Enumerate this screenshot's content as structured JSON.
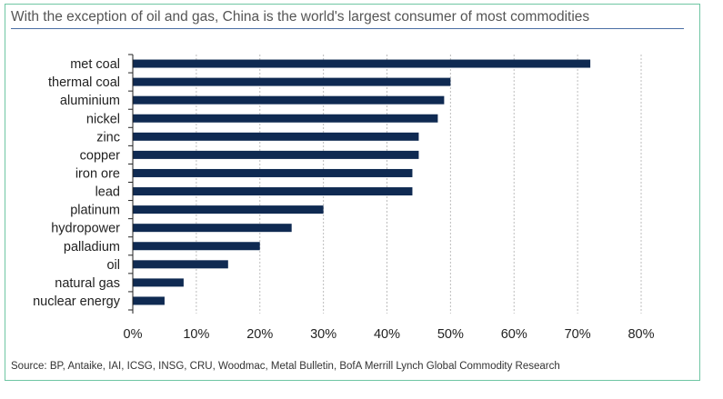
{
  "title": "With the exception of oil and gas, China is the world's largest consumer of most commodities",
  "source": "Source: BP, Antaike, IAI, ICSG, INSG, CRU, Woodmac, Metal Bulletin, BofA Merrill Lynch Global Commodity Research",
  "colors": {
    "bar": "#0f2a52",
    "frame": "#6fc6a3",
    "rule": "#4a6fa5",
    "grid": "#bdbdbd"
  },
  "chart_data": {
    "type": "bar",
    "orientation": "horizontal",
    "title": "With the exception of oil and gas, China is the world's largest consumer of most commodities",
    "categories": [
      "met coal",
      "thermal coal",
      "aluminium",
      "nickel",
      "zinc",
      "copper",
      "iron ore",
      "lead",
      "platinum",
      "hydropower",
      "palladium",
      "oil",
      "natural gas",
      "nuclear energy"
    ],
    "values": [
      72,
      50,
      49,
      48,
      45,
      45,
      44,
      44,
      30,
      25,
      20,
      15,
      8,
      5
    ],
    "xlim": [
      0,
      80
    ],
    "xticks": [
      0,
      10,
      20,
      30,
      40,
      50,
      60,
      70,
      80
    ],
    "xtick_labels": [
      "0%",
      "10%",
      "20%",
      "30%",
      "40%",
      "50%",
      "60%",
      "70%",
      "80%"
    ],
    "xlabel": "",
    "ylabel": "",
    "grid": "vertical dotted"
  }
}
